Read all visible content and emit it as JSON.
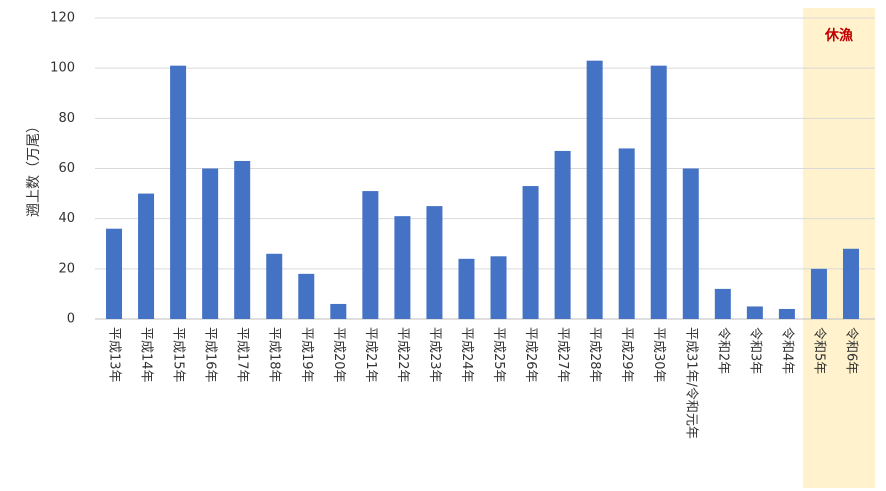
{
  "chart_data": {
    "type": "bar",
    "y_label": "遡上数（万尾）",
    "categories": [
      "平成13年",
      "平成14年",
      "平成15年",
      "平成16年",
      "平成17年",
      "平成18年",
      "平成19年",
      "平成20年",
      "平成21年",
      "平成22年",
      "平成23年",
      "平成24年",
      "平成25年",
      "平成26年",
      "平成27年",
      "平成28年",
      "平成29年",
      "平成30年",
      "平成31年/令和元年",
      "令和2年",
      "令和3年",
      "令和4年",
      "令和5年",
      "令和6年"
    ],
    "values": [
      36,
      50,
      101,
      60,
      63,
      26,
      18,
      6,
      51,
      41,
      45,
      24,
      25,
      53,
      67,
      103,
      68,
      101,
      60,
      12,
      5,
      4,
      20,
      28
    ],
    "color": "#4472c4",
    "ylim": [
      0,
      120
    ],
    "yticks": [
      0,
      20,
      40,
      60,
      80,
      100,
      120
    ],
    "grid": true,
    "highlight": {
      "label": "休漁",
      "start": "令和5年",
      "end": "令和6年",
      "color": "#fff2cc",
      "label_color": "#c00000"
    }
  }
}
